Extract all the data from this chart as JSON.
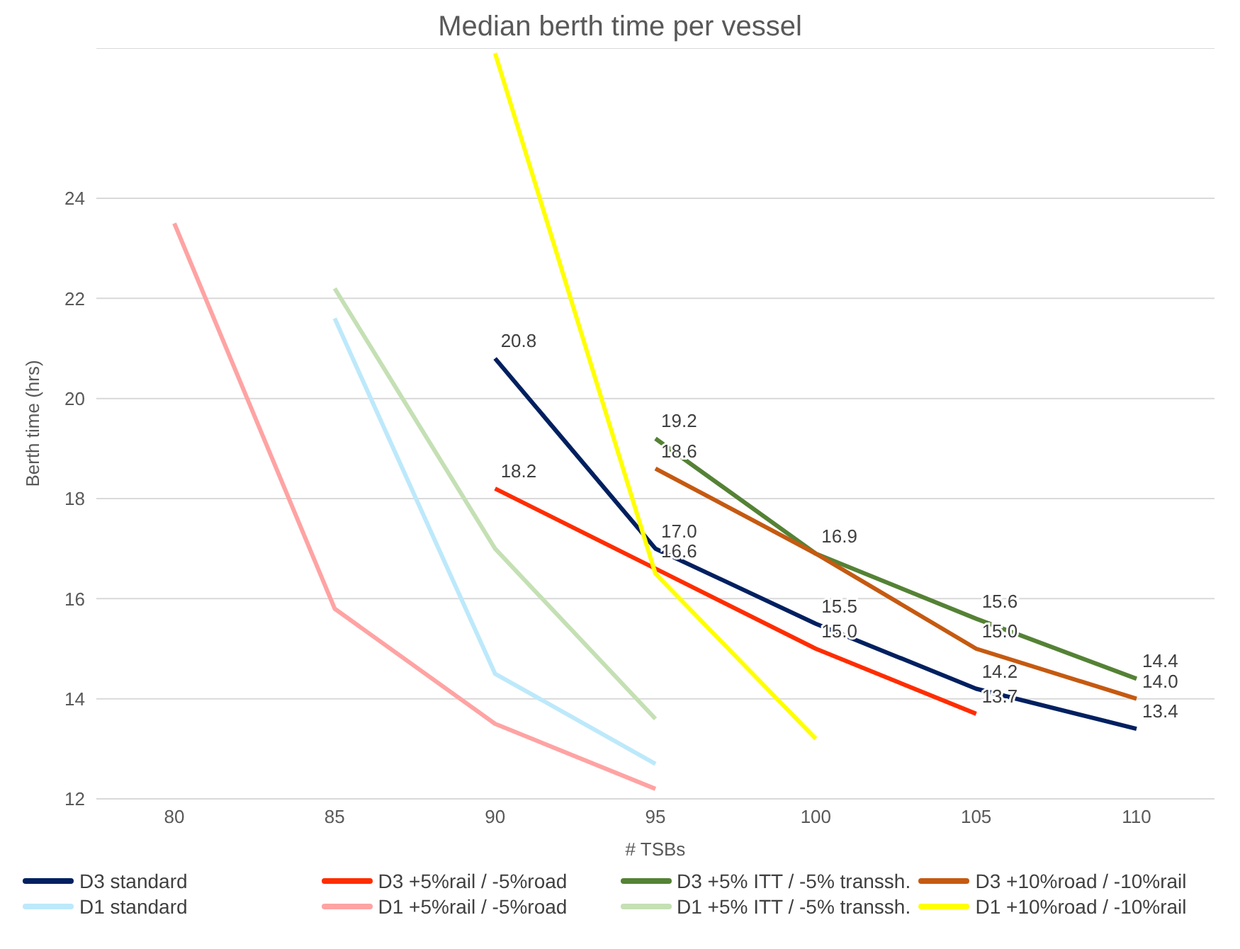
{
  "chart_data": {
    "type": "line",
    "title": "Median berth time per vessel",
    "xlabel": "# TSBs",
    "ylabel": "Berth time (hrs)",
    "categories": [
      "80",
      "85",
      "90",
      "95",
      "100",
      "105",
      "110"
    ],
    "ylim": [
      12,
      27
    ],
    "yticks": [
      12,
      14,
      16,
      18,
      20,
      22,
      24
    ],
    "grid": "y",
    "legend": "bottom",
    "marker": "none",
    "line_style": "solid",
    "series": [
      {
        "name": "D3 standard",
        "color": "#002060",
        "values": [
          null,
          null,
          20.8,
          17.0,
          15.5,
          14.2,
          13.4
        ],
        "value_labels": [
          null,
          null,
          "20.8",
          "17.0",
          "15.5",
          "14.2",
          "13.4"
        ]
      },
      {
        "name": "D3 +5%rail / -5%road",
        "color": "#ff2d00",
        "values": [
          null,
          null,
          18.2,
          16.6,
          15.0,
          13.7,
          null
        ],
        "value_labels": [
          null,
          null,
          "18.2",
          "16.6",
          "15.0",
          "13.7",
          null
        ]
      },
      {
        "name": "D3 +5% ITT / -5% transsh.",
        "color": "#548235",
        "values": [
          null,
          null,
          null,
          19.2,
          16.9,
          15.6,
          14.4
        ],
        "value_labels": [
          null,
          null,
          null,
          "19.2",
          "16.9",
          "15.6",
          "14.4"
        ]
      },
      {
        "name": "D3 +10%road / -10%rail",
        "color": "#c55a11",
        "values": [
          null,
          null,
          null,
          18.6,
          16.9,
          15.0,
          14.0
        ],
        "value_labels": [
          null,
          null,
          null,
          "18.6",
          null,
          "15.0",
          "14.0"
        ]
      },
      {
        "name": "D1 standard",
        "color": "#bde9fb",
        "values": [
          null,
          21.6,
          14.5,
          12.7,
          null,
          null,
          null
        ]
      },
      {
        "name": "D1 +5%rail / -5%road",
        "color": "#ffa3a3",
        "values": [
          23.5,
          15.8,
          13.5,
          12.2,
          null,
          null,
          null
        ]
      },
      {
        "name": "D1 +5% ITT / -5% transsh.",
        "color": "#c5e0b4",
        "values": [
          null,
          22.2,
          17.0,
          13.6,
          null,
          null,
          null
        ]
      },
      {
        "name": "D1 +10%road / -10%rail",
        "color": "#ffff00",
        "values": [
          null,
          null,
          26.9,
          16.5,
          13.2,
          null,
          null
        ]
      }
    ]
  }
}
